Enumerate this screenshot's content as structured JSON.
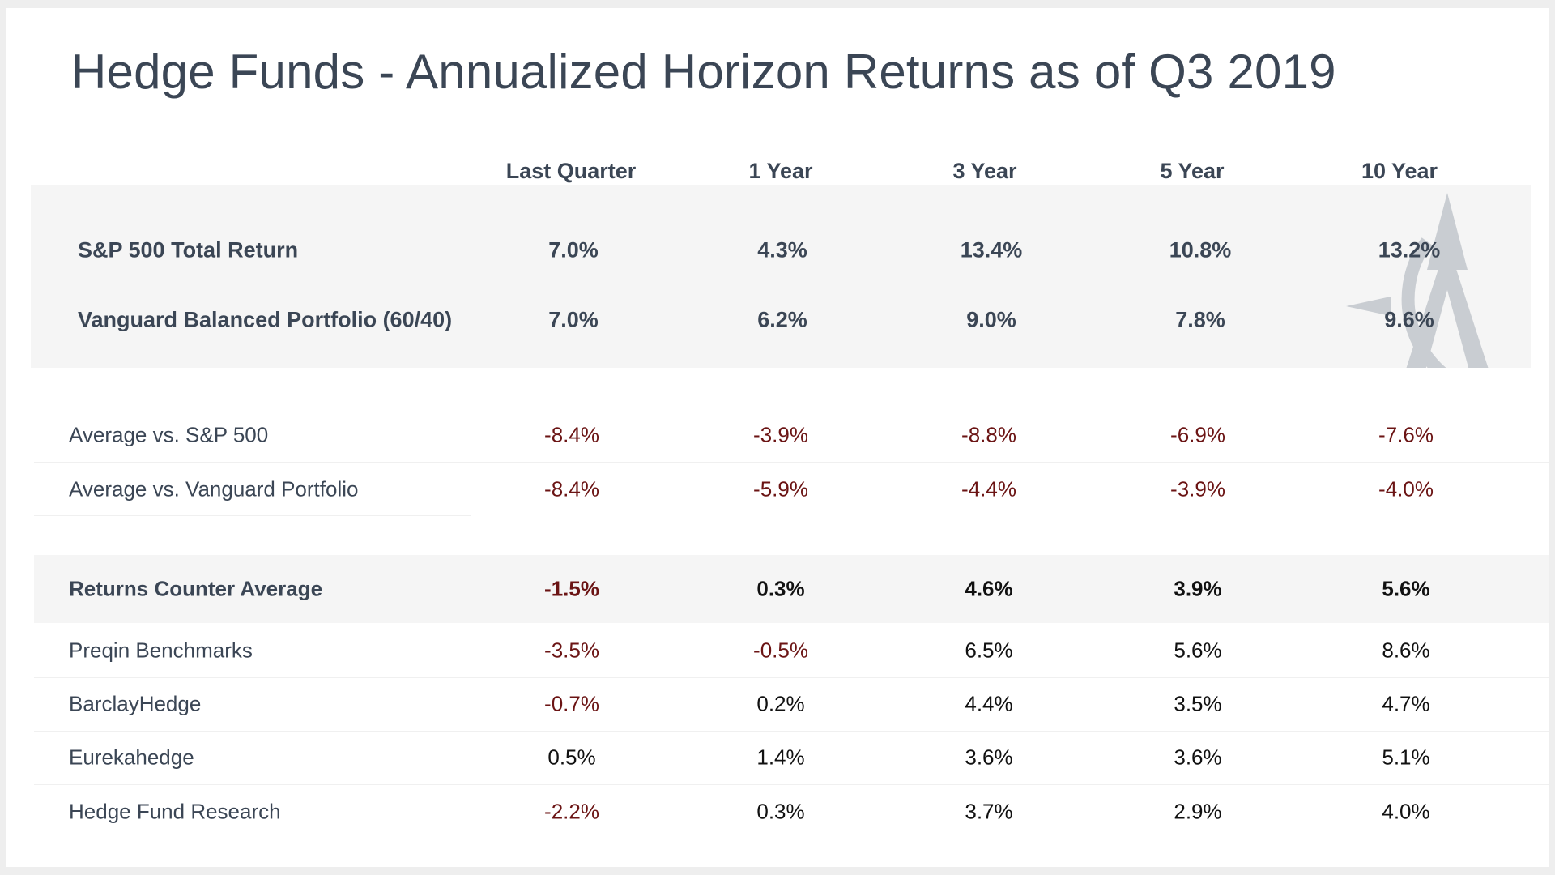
{
  "title": "Hedge Funds - Annualized Horizon Returns as of Q3 2019",
  "columns": [
    "Last Quarter",
    "1 Year",
    "3 Year",
    "5 Year",
    "10 Year"
  ],
  "benchmarks": [
    {
      "label": "S&P 500 Total Return",
      "values": [
        "7.0%",
        "4.3%",
        "13.4%",
        "10.8%",
        "13.2%"
      ]
    },
    {
      "label": "Vanguard Balanced Portfolio (60/40)",
      "values": [
        "7.0%",
        "6.2%",
        "9.0%",
        "7.8%",
        "9.6%"
      ]
    }
  ],
  "comparisons": [
    {
      "label": "Average vs. S&P 500",
      "values": [
        "-8.4%",
        "-3.9%",
        "-8.8%",
        "-6.9%",
        "-7.6%"
      ]
    },
    {
      "label": "Average vs. Vanguard Portfolio",
      "values": [
        "-8.4%",
        "-5.9%",
        "-4.4%",
        "-3.9%",
        "-4.0%"
      ]
    }
  ],
  "average": {
    "label": "Returns Counter Average",
    "values": [
      "-1.5%",
      "0.3%",
      "4.6%",
      "3.9%",
      "5.6%"
    ]
  },
  "indices": [
    {
      "label": "Preqin Benchmarks",
      "values": [
        "-3.5%",
        "-0.5%",
        "6.5%",
        "5.6%",
        "8.6%"
      ]
    },
    {
      "label": "BarclayHedge",
      "values": [
        "-0.7%",
        "0.2%",
        "4.4%",
        "3.5%",
        "4.7%"
      ]
    },
    {
      "label": "Eurekahedge",
      "values": [
        "0.5%",
        "1.4%",
        "3.6%",
        "3.6%",
        "5.1%"
      ]
    },
    {
      "label": "Hedge Fund Research",
      "values": [
        "-2.2%",
        "0.3%",
        "3.7%",
        "2.9%",
        "4.0%"
      ]
    }
  ],
  "colors": {
    "text": "#3b4655",
    "negative": "#6b1414",
    "band": "#f5f5f5",
    "watermark": "#c9cdd2"
  },
  "watermark_icon": "compass-a-logo"
}
